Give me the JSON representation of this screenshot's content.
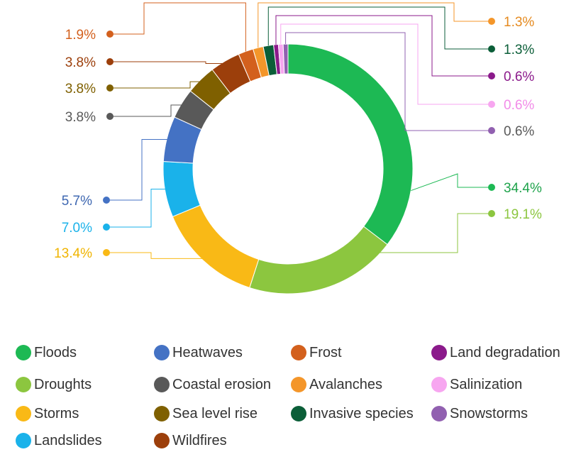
{
  "chart_data": {
    "type": "pie",
    "style": "donut",
    "legend_placement": "bottom",
    "categories": [
      "Floods",
      "Droughts",
      "Storms",
      "Landslides",
      "Heatwaves",
      "Coastal erosion",
      "Sea level rise",
      "Wildfires",
      "Frost",
      "Avalanches",
      "Invasive species",
      "Land degradation",
      "Salinization",
      "Snowstorms"
    ],
    "values": [
      34.4,
      19.1,
      13.4,
      7.0,
      5.7,
      3.8,
      3.8,
      3.8,
      1.9,
      1.3,
      1.3,
      0.6,
      0.6,
      0.6
    ],
    "labels": [
      "34.4%",
      "19.1%",
      "13.4%",
      "7.0%",
      "5.7%",
      "3.8%",
      "3.8%",
      "3.8%",
      "1.9%",
      "1.3%",
      "1.3%",
      "0.6%",
      "0.6%",
      "0.6%"
    ],
    "colors": [
      "#1db954",
      "#8cc63f",
      "#f9b916",
      "#1ab2ea",
      "#4472c4",
      "#595959",
      "#7f6000",
      "#9c3f0b",
      "#d3601d",
      "#f4962a",
      "#0b5e38",
      "#8b1a8b",
      "#f7a6f0",
      "#9160b0"
    ],
    "label_colors": [
      "#1ea34b",
      "#8cc63f",
      "#f0b400",
      "#1ab2ea",
      "#3e67b1",
      "#595959",
      "#7f6000",
      "#9c3f0b",
      "#d3601d",
      "#e58a1f",
      "#0b5e38",
      "#8b1a8b",
      "#f28be8",
      "#595959"
    ]
  }
}
